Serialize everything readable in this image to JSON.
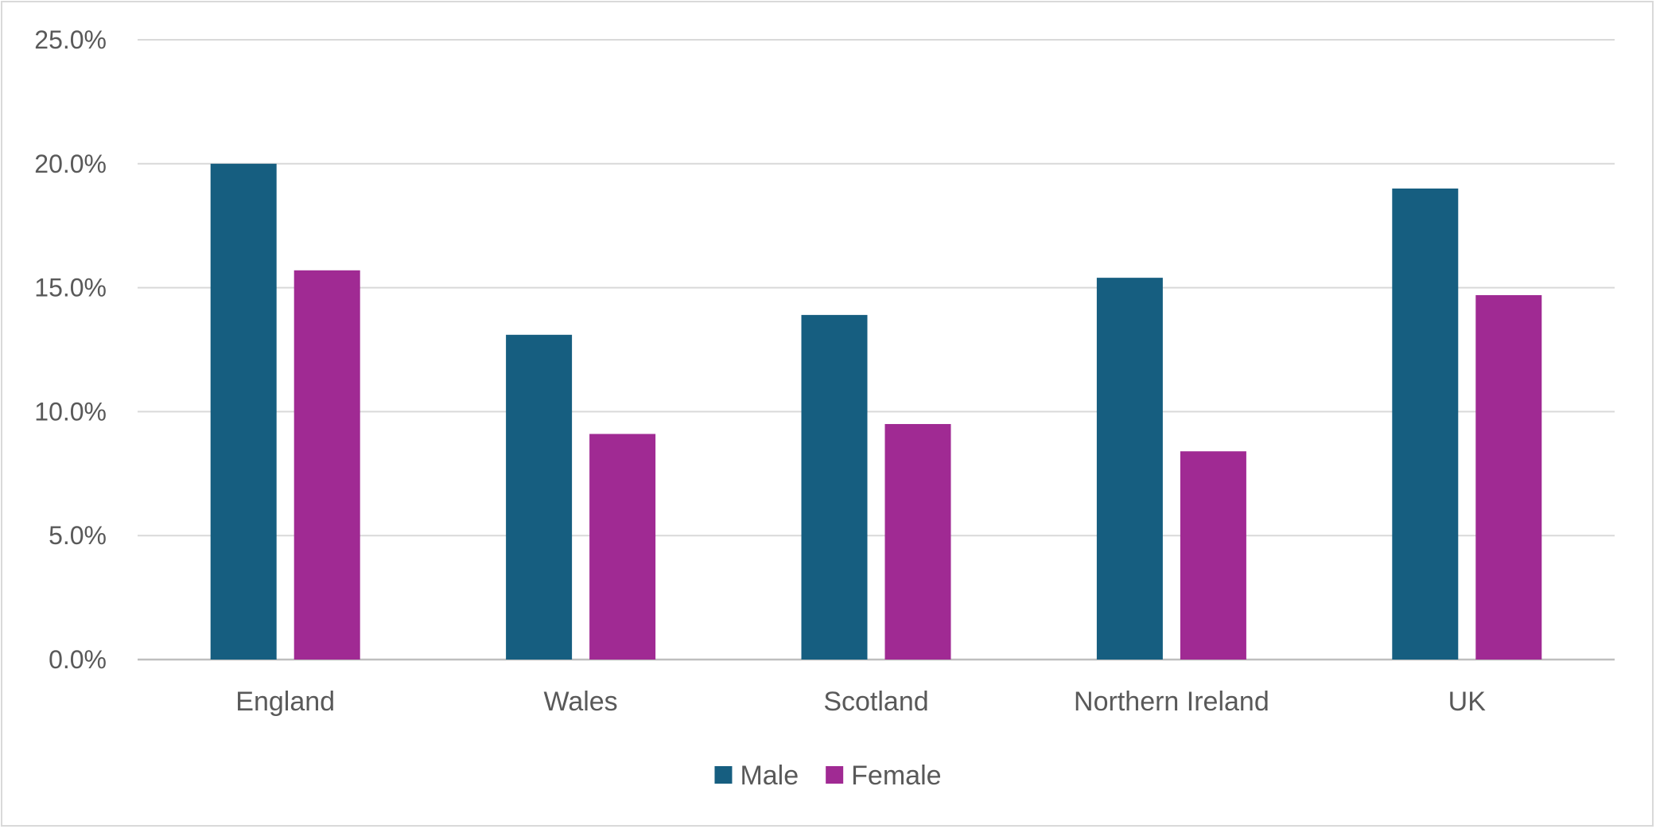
{
  "chart_data": {
    "type": "bar",
    "categories": [
      "England",
      "Wales",
      "Scotland",
      "Northern Ireland",
      "UK"
    ],
    "series": [
      {
        "name": "Male",
        "color": "#165e80",
        "values": [
          20.0,
          13.1,
          13.9,
          15.4,
          19.0
        ]
      },
      {
        "name": "Female",
        "color": "#a02a93",
        "values": [
          15.7,
          9.1,
          9.5,
          8.4,
          14.7
        ]
      }
    ],
    "y_ticks": [
      "0.0%",
      "5.0%",
      "10.0%",
      "15.0%",
      "20.0%",
      "25.0%"
    ],
    "ylim": [
      0,
      25
    ],
    "grid": true,
    "legend": "bottom"
  }
}
